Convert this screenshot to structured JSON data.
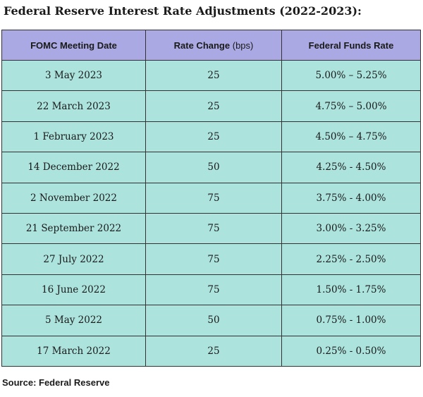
{
  "title": "Federal Reserve Interest Rate Adjustments (2022-2023):",
  "table": {
    "headers": {
      "date": "FOMC Meeting Date",
      "change_main": "Rate Change",
      "change_unit": "(bps)",
      "rate": "Federal Funds Rate"
    },
    "rows": [
      {
        "date": "3 May 2023",
        "change": "25",
        "rate": "5.00% – 5.25%"
      },
      {
        "date": "22 March 2023",
        "change": "25",
        "rate": "4.75% – 5.00%"
      },
      {
        "date": "1 February 2023",
        "change": "25",
        "rate": "4.50% – 4.75%"
      },
      {
        "date": "14 December 2022",
        "change": "50",
        "rate": "4.25% - 4.50%"
      },
      {
        "date": "2 November 2022",
        "change": "75",
        "rate": "3.75% - 4.00%"
      },
      {
        "date": "21 September 2022",
        "change": "75",
        "rate": "3.00% - 3.25%"
      },
      {
        "date": "27 July 2022",
        "change": "75",
        "rate": "2.25% - 2.50%"
      },
      {
        "date": "16 June 2022",
        "change": "75",
        "rate": "1.50% - 1.75%"
      },
      {
        "date": "5 May 2022",
        "change": "50",
        "rate": "0.75% - 1.00%"
      },
      {
        "date": "17 March 2022",
        "change": "25",
        "rate": "0.25% - 0.50%"
      }
    ]
  },
  "source": "Source: Federal Reserve"
}
